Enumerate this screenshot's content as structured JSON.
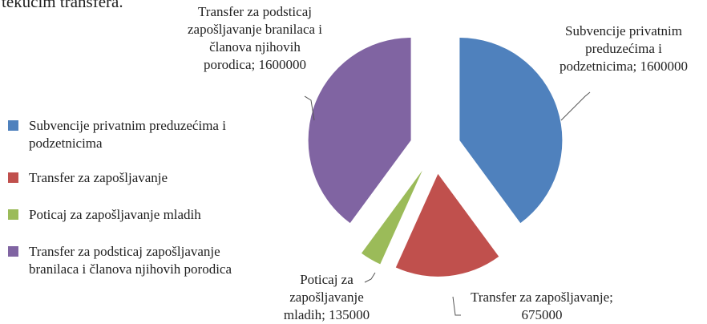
{
  "chart_data": {
    "type": "pie",
    "title": "tekućim transfera.",
    "categories": [
      "Subvencije privatnim preduzećima i podzetnicima",
      "Transfer za zapošljavanje",
      "Poticaj za zapošljavanje mladih",
      "Transfer za podsticaj zapošljavanje branilaca i članova njihovih porodica"
    ],
    "values": [
      1600000,
      675000,
      135000,
      1600000
    ],
    "colors": [
      "#4f81bd",
      "#c0504d",
      "#9bbb59",
      "#8064a2"
    ],
    "exploded": true,
    "legend": "left"
  }
}
